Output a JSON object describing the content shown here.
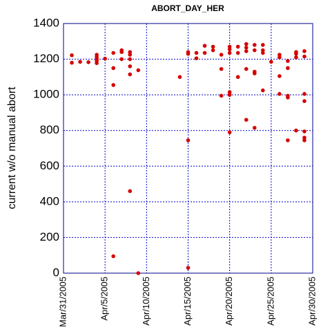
{
  "chart_data": {
    "type": "scatter",
    "title": "ABORT_DAY_HER",
    "y_label": "current w/o manual abort",
    "color": "#d40000",
    "grid": true,
    "ylim": [
      0,
      1400
    ],
    "yticks": [
      0,
      200,
      400,
      600,
      800,
      1000,
      1200,
      1400
    ],
    "xlim": [
      "2005-03-31",
      "2005-04-30"
    ],
    "xticks": [
      {
        "value": "2005-03-31",
        "label": "Mar/31/2005"
      },
      {
        "value": "2005-04-05",
        "label": "Apr/5/2005"
      },
      {
        "value": "2005-04-10",
        "label": "Apr/10/2005"
      },
      {
        "value": "2005-04-15",
        "label": "Apr/15/2005"
      },
      {
        "value": "2005-04-20",
        "label": "Apr/20/2005"
      },
      {
        "value": "2005-04-25",
        "label": "Apr/25/2005"
      },
      {
        "value": "2005-04-30",
        "label": "Apr/30/2005"
      }
    ],
    "x": [
      "2005-04-01",
      "2005-04-01",
      "2005-04-02",
      "2005-04-03",
      "2005-04-04",
      "2005-04-04",
      "2005-04-04",
      "2005-04-04",
      "2005-04-04",
      "2005-04-05",
      "2005-04-06",
      "2005-04-06",
      "2005-04-06",
      "2005-04-06",
      "2005-04-07",
      "2005-04-07",
      "2005-04-07",
      "2005-04-08",
      "2005-04-08",
      "2005-04-08",
      "2005-04-08",
      "2005-04-08",
      "2005-04-08",
      "2005-04-09",
      "2005-04-09",
      "2005-04-14",
      "2005-04-15",
      "2005-04-15",
      "2005-04-15",
      "2005-04-15",
      "2005-04-16",
      "2005-04-16",
      "2005-04-17",
      "2005-04-17",
      "2005-04-18",
      "2005-04-18",
      "2005-04-19",
      "2005-04-19",
      "2005-04-19",
      "2005-04-20",
      "2005-04-20",
      "2005-04-20",
      "2005-04-20",
      "2005-04-20",
      "2005-04-20",
      "2005-04-21",
      "2005-04-21",
      "2005-04-21",
      "2005-04-22",
      "2005-04-22",
      "2005-04-22",
      "2005-04-22",
      "2005-04-22",
      "2005-04-23",
      "2005-04-23",
      "2005-04-23",
      "2005-04-23",
      "2005-04-23",
      "2005-04-24",
      "2005-04-24",
      "2005-04-24",
      "2005-04-24",
      "2005-04-25",
      "2005-04-26",
      "2005-04-26",
      "2005-04-26",
      "2005-04-26",
      "2005-04-27",
      "2005-04-27",
      "2005-04-27",
      "2005-04-27",
      "2005-04-27",
      "2005-04-28",
      "2005-04-28",
      "2005-04-28",
      "2005-04-28",
      "2005-04-29",
      "2005-04-29",
      "2005-04-29",
      "2005-04-29",
      "2005-04-29",
      "2005-04-29",
      "2005-04-29"
    ],
    "values": [
      1222,
      1180,
      1185,
      1183,
      1225,
      1213,
      1200,
      1190,
      1178,
      1203,
      1235,
      1150,
      1055,
      95,
      1250,
      1240,
      1200,
      1240,
      1225,
      1200,
      1160,
      1115,
      460,
      1138,
      0,
      1100,
      1240,
      1230,
      745,
      30,
      1235,
      1205,
      1275,
      1235,
      1270,
      1250,
      1225,
      1145,
      995,
      1270,
      1255,
      1235,
      1015,
      1000,
      790,
      1270,
      1235,
      1100,
      1285,
      1265,
      1245,
      1145,
      860,
      1280,
      1250,
      1130,
      1120,
      815,
      1280,
      1250,
      1235,
      1025,
      1185,
      1225,
      1210,
      1105,
      1005,
      1190,
      1150,
      995,
      985,
      745,
      1240,
      1230,
      1210,
      800,
      1245,
      1215,
      1005,
      965,
      795,
      760,
      745
    ]
  }
}
